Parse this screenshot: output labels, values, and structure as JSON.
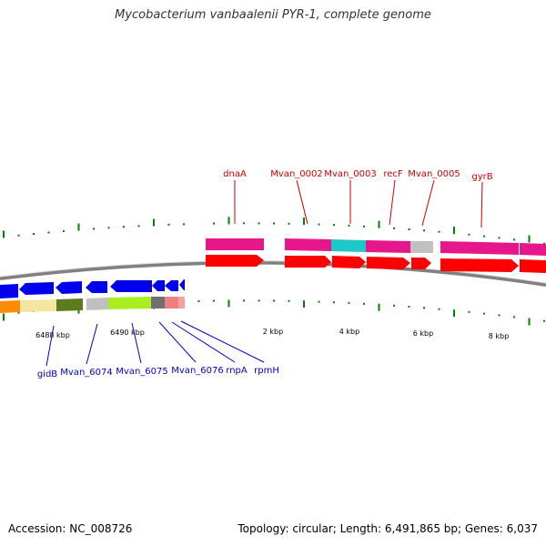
{
  "title": "Mycobacterium vanbaalenii PYR-1, complete genome",
  "footer": {
    "accession": "Accession: NC_008726",
    "summary": "Topology: circular; Length: 6,491,865 bp; Genes: 6,037"
  },
  "colors": {
    "backbone": "#808080",
    "tick": "#008000",
    "forward_label": "#cc0000",
    "reverse_label": "#0000cc",
    "cds_forward": "#ff0000",
    "cds_reverse": "#0000ee",
    "cog_magenta": "#e6178a",
    "cog_cyan": "#1ec8c8",
    "cog_gray": "#c0c0c0",
    "cog_orange": "#ff8c00",
    "cog_lightyellow": "#f2e6a0",
    "cog_olive": "#5e7a1e",
    "cog_lime": "#aaee22",
    "cog_darkgray": "#707070",
    "cog_pink": "#f08080"
  },
  "scale_labels": [
    "6488 kbp",
    "6490 kbp",
    "2 kbp",
    "4 kbp",
    "6 kbp",
    "8 kbp"
  ],
  "forward_genes": [
    "dnaA",
    "Mvan_0002",
    "Mvan_0003",
    "recF",
    "Mvan_0005",
    "gyrB"
  ],
  "reverse_genes": [
    "gidB",
    "Mvan_6074",
    "Mvan_6075",
    "Mvan_6076",
    "rnpA",
    "rpmH"
  ]
}
